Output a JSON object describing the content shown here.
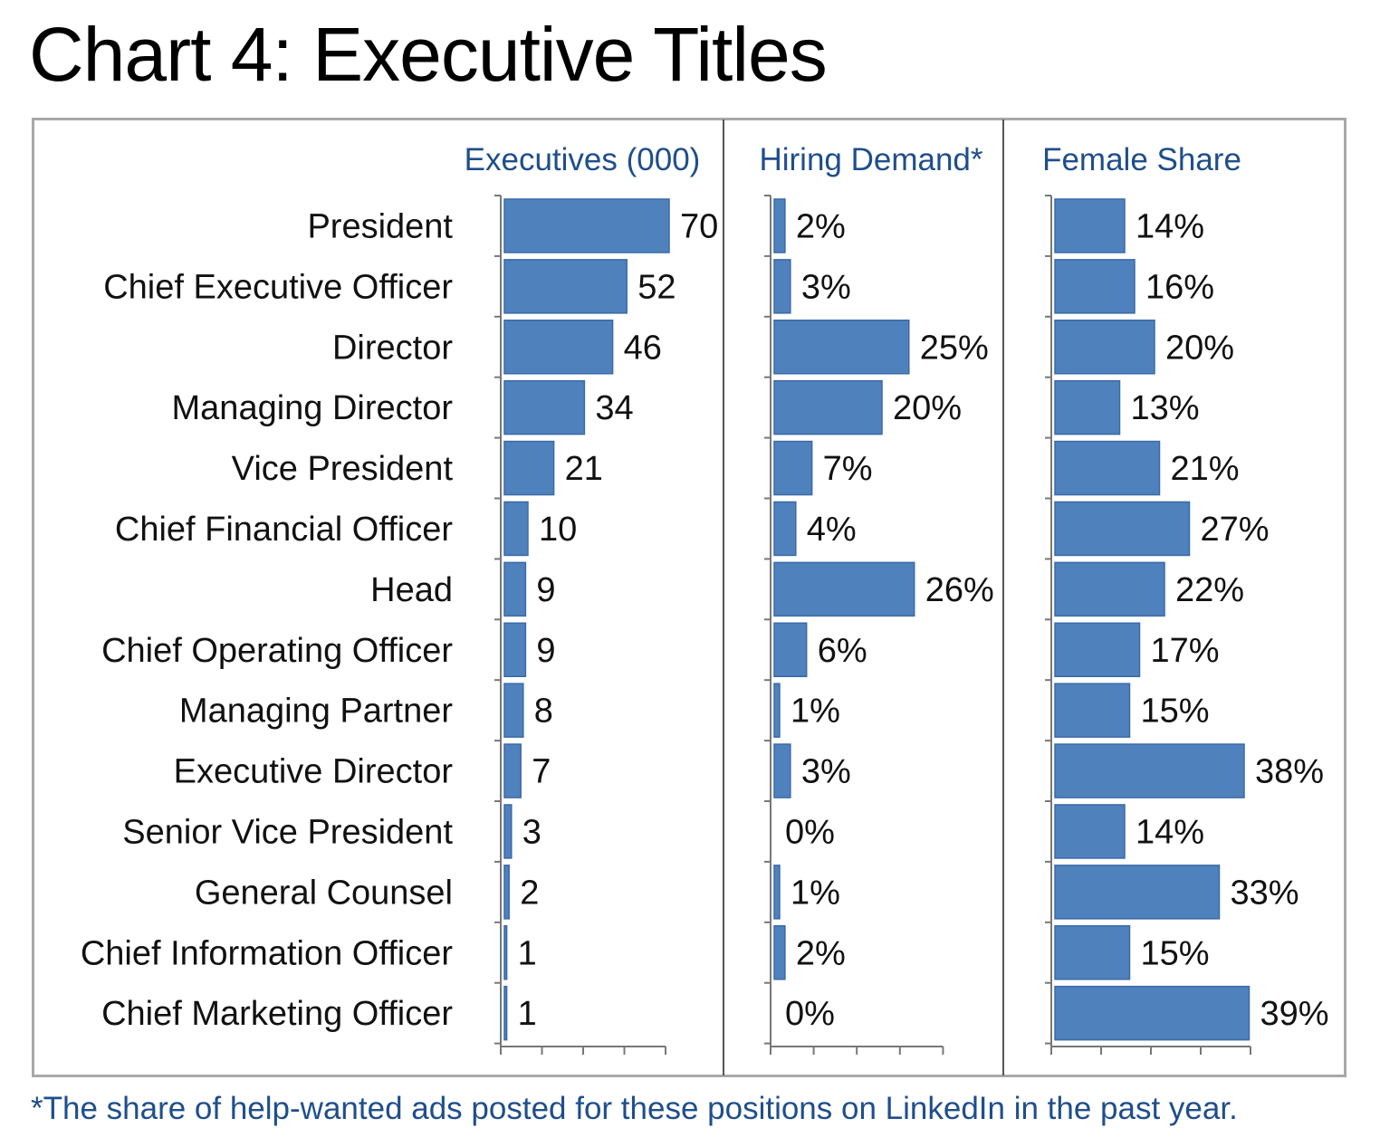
{
  "title": "Chart 4: Executive Titles",
  "footnote": "*The share of help-wanted ads posted for these positions on LinkedIn in the past year.",
  "chart_data": {
    "type": "bar",
    "orientation": "horizontal",
    "categories": [
      "President",
      "Chief Executive Officer",
      "Director",
      "Managing Director",
      "Vice President",
      "Chief Financial Officer",
      "Head",
      "Chief Operating Officer",
      "Managing Partner",
      "Executive Director",
      "Senior Vice President",
      "General Counsel",
      "Chief Information Officer",
      "Chief Marketing Officer"
    ],
    "panels": [
      {
        "title": "Executives (000)",
        "values": [
          70,
          52,
          46,
          34,
          21,
          10,
          9,
          9,
          8,
          7,
          3,
          2,
          1,
          1
        ],
        "labels": [
          "70",
          "52",
          "46",
          "34",
          "21",
          "10",
          "9",
          "9",
          "8",
          "7",
          "3",
          "2",
          "1",
          "1"
        ]
      },
      {
        "title": "Hiring Demand*",
        "values": [
          2,
          3,
          25,
          20,
          7,
          4,
          26,
          6,
          1,
          3,
          0,
          1,
          2,
          0
        ],
        "labels": [
          "2%",
          "3%",
          "25%",
          "20%",
          "7%",
          "4%",
          "26%",
          "6%",
          "1%",
          "3%",
          "0%",
          "1%",
          "2%",
          "0%"
        ]
      },
      {
        "title": "Female Share",
        "values": [
          14,
          16,
          20,
          13,
          21,
          27,
          22,
          17,
          15,
          38,
          14,
          33,
          15,
          39
        ],
        "labels": [
          "14%",
          "16%",
          "20%",
          "13%",
          "21%",
          "27%",
          "22%",
          "17%",
          "15%",
          "38%",
          "14%",
          "33%",
          "15%",
          "39%"
        ]
      }
    ],
    "colors": {
      "bar": "#4f81bd",
      "bar_edge": "#3a6aa8",
      "panel_title": "#1f4e8c"
    },
    "grid": false,
    "legend": "none"
  }
}
